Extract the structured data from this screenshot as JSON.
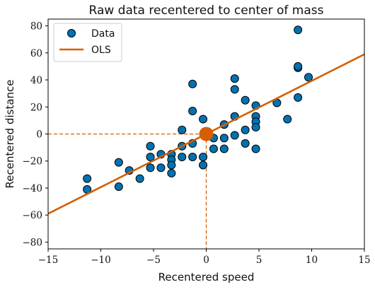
{
  "chart_data": {
    "type": "scatter",
    "title": "Raw data recentered to center of mass",
    "xlabel": "Recentered speed",
    "ylabel": "Recentered distance",
    "xlim": [
      -15,
      15
    ],
    "ylim": [
      -85,
      85
    ],
    "xticks": [
      -15,
      -10,
      -5,
      0,
      5,
      10,
      15
    ],
    "yticks": [
      -80,
      -60,
      -40,
      -20,
      0,
      20,
      40,
      60,
      80
    ],
    "x_tick_labels": [
      "−15",
      "−10",
      "−5",
      "0",
      "5",
      "10",
      "15"
    ],
    "y_tick_labels": [
      "−80",
      "−60",
      "−40",
      "−20",
      "0",
      "20",
      "40",
      "60",
      "80"
    ],
    "grid": false,
    "legend_position": "top-left",
    "series": [
      {
        "name": "Data",
        "kind": "scatter",
        "color": "#0072B2",
        "points": [
          [
            -11.3,
            -33
          ],
          [
            -11.3,
            -41
          ],
          [
            -8.3,
            -21
          ],
          [
            -8.3,
            -39
          ],
          [
            -7.3,
            -27
          ],
          [
            -6.3,
            -33
          ],
          [
            -5.3,
            -9
          ],
          [
            -5.3,
            -17
          ],
          [
            -5.3,
            -25
          ],
          [
            -4.3,
            -15
          ],
          [
            -4.3,
            -25
          ],
          [
            -3.3,
            -15
          ],
          [
            -3.3,
            -19
          ],
          [
            -3.3,
            -23
          ],
          [
            -3.3,
            -29
          ],
          [
            -2.3,
            3
          ],
          [
            -2.3,
            -9
          ],
          [
            -2.3,
            -17
          ],
          [
            -1.3,
            37
          ],
          [
            -1.3,
            17
          ],
          [
            -1.3,
            -7
          ],
          [
            -1.3,
            -17
          ],
          [
            -0.3,
            11
          ],
          [
            -0.3,
            -17
          ],
          [
            -0.3,
            -23
          ],
          [
            0.7,
            -3
          ],
          [
            0.7,
            -11
          ],
          [
            1.7,
            7
          ],
          [
            1.7,
            -3
          ],
          [
            1.7,
            -11
          ],
          [
            2.7,
            41
          ],
          [
            2.7,
            33
          ],
          [
            2.7,
            13
          ],
          [
            2.7,
            -1
          ],
          [
            3.7,
            25
          ],
          [
            3.7,
            3
          ],
          [
            3.7,
            -7
          ],
          [
            4.7,
            21
          ],
          [
            4.7,
            13
          ],
          [
            4.7,
            9
          ],
          [
            4.7,
            5
          ],
          [
            4.7,
            -11
          ],
          [
            6.7,
            23
          ],
          [
            7.7,
            11
          ],
          [
            8.7,
            77
          ],
          [
            8.7,
            49
          ],
          [
            8.7,
            50
          ],
          [
            8.7,
            27
          ],
          [
            9.7,
            42
          ]
        ]
      },
      {
        "name": "OLS",
        "kind": "line",
        "color": "#D55E00",
        "slope": 3.932,
        "intercept": 0,
        "x_range": [
          -15,
          15
        ]
      }
    ],
    "center_of_mass": {
      "x": 0,
      "y": 0,
      "color": "#D55E00"
    }
  }
}
